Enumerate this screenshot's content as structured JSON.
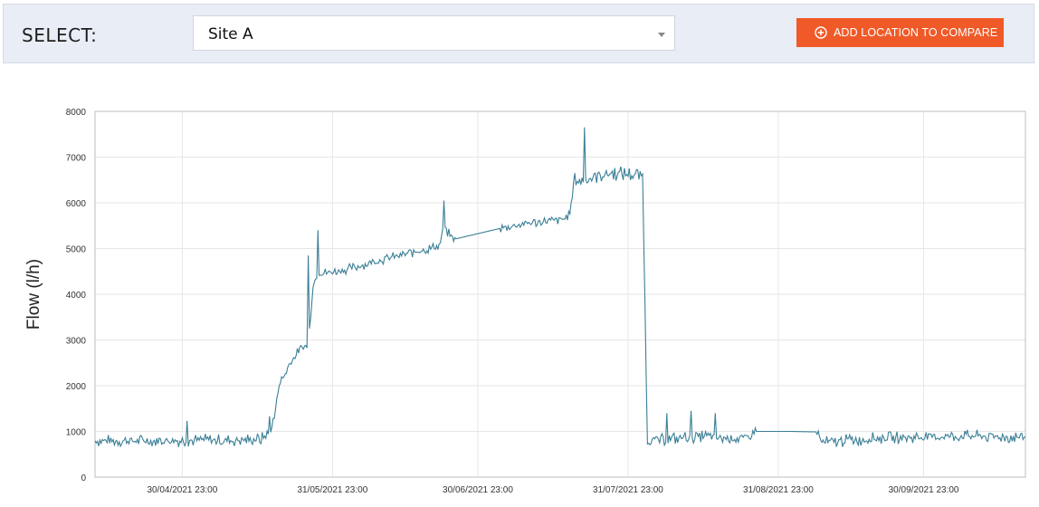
{
  "header": {
    "select_label": "SELECT:",
    "location_value": "Site A",
    "add_button_label": "ADD LOCATION TO COMPARE",
    "add_button_color": "#f05a28"
  },
  "chart_data": {
    "type": "line",
    "ylabel": "Flow (l/h)",
    "xlabel": "",
    "title": "",
    "ylim": [
      0,
      8000
    ],
    "yticks": [
      0,
      1000,
      2000,
      3000,
      4000,
      5000,
      6000,
      7000,
      8000
    ],
    "xlim": [
      "2021-04-12",
      "2021-10-21"
    ],
    "xticks": [
      "2021-04-30",
      "2021-05-31",
      "2021-06-30",
      "2021-07-31",
      "2021-08-31",
      "2021-09-30"
    ],
    "xtick_labels": [
      "30/04/2021 23:00",
      "31/05/2021 23:00",
      "30/06/2021 23:00",
      "31/07/2021 23:00",
      "31/08/2021 23:00",
      "30/09/2021 23:00"
    ],
    "grid": true,
    "line_color": "#3b7f96",
    "series": [
      {
        "points": [
          [
            "2021-04-12",
            800
          ],
          [
            "2021-04-20",
            790
          ],
          [
            "2021-04-30",
            800
          ],
          [
            "2021-05-05",
            810
          ],
          [
            "2021-05-10",
            800
          ],
          [
            "2021-05-13",
            820
          ],
          [
            "2021-05-16",
            820
          ],
          [
            "2021-05-18",
            950
          ],
          [
            "2021-05-19",
            1300
          ],
          [
            "2021-05-20",
            2050
          ],
          [
            "2021-05-21",
            2200
          ],
          [
            "2021-05-22",
            2450
          ],
          [
            "2021-05-23",
            2600
          ],
          [
            "2021-05-24",
            2750
          ],
          [
            "2021-05-25",
            2850
          ],
          [
            "2021-05-26",
            2880
          ],
          [
            "2021-05-27",
            4200
          ],
          [
            "2021-05-28",
            4450
          ],
          [
            "2021-06-01",
            4500
          ],
          [
            "2021-06-05",
            4600
          ],
          [
            "2021-06-08",
            4700
          ],
          [
            "2021-06-12",
            4800
          ],
          [
            "2021-06-16",
            4900
          ],
          [
            "2021-06-20",
            5000
          ],
          [
            "2021-06-22",
            5050
          ],
          [
            "2021-06-23",
            5450
          ],
          [
            "2021-06-25",
            5200
          ],
          [
            "2021-07-05",
            5450
          ],
          [
            "2021-07-10",
            5550
          ],
          [
            "2021-07-15",
            5600
          ],
          [
            "2021-07-18",
            5650
          ],
          [
            "2021-07-19",
            5800
          ],
          [
            "2021-07-20",
            6450
          ],
          [
            "2021-07-22",
            6500
          ],
          [
            "2021-07-25",
            6600
          ],
          [
            "2021-07-28",
            6650
          ],
          [
            "2021-08-03",
            6600
          ],
          [
            "2021-08-04",
            800
          ],
          [
            "2021-08-10",
            850
          ],
          [
            "2021-08-15",
            900
          ],
          [
            "2021-08-20",
            850
          ],
          [
            "2021-08-25",
            850
          ],
          [
            "2021-08-26",
            1000
          ],
          [
            "2021-09-02",
            1000
          ],
          [
            "2021-09-08",
            990
          ],
          [
            "2021-09-09",
            750
          ],
          [
            "2021-09-14",
            800
          ],
          [
            "2021-09-20",
            850
          ],
          [
            "2021-10-01",
            880
          ],
          [
            "2021-10-10",
            900
          ],
          [
            "2021-10-21",
            870
          ]
        ],
        "spikes": [
          [
            "2021-05-18",
            1330
          ],
          [
            "2021-05-01",
            1230
          ],
          [
            "2021-05-26",
            4850
          ],
          [
            "2021-05-28",
            5400
          ],
          [
            "2021-06-23",
            6050
          ],
          [
            "2021-07-20",
            6650
          ],
          [
            "2021-07-22",
            7650
          ],
          [
            "2021-08-08",
            1400
          ],
          [
            "2021-08-13",
            1450
          ],
          [
            "2021-08-18",
            1400
          ]
        ]
      }
    ]
  }
}
